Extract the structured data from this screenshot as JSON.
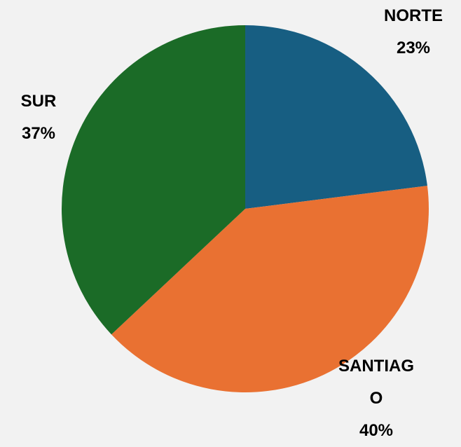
{
  "chart_data": {
    "type": "pie",
    "labels": [
      "NORTE",
      "SANTIAGO",
      "SUR"
    ],
    "values": [
      23,
      40,
      37
    ],
    "value_labels": [
      "23%",
      "40%",
      "37%"
    ],
    "colors": [
      "#175e82",
      "#e97132",
      "#1b6b27"
    ]
  }
}
